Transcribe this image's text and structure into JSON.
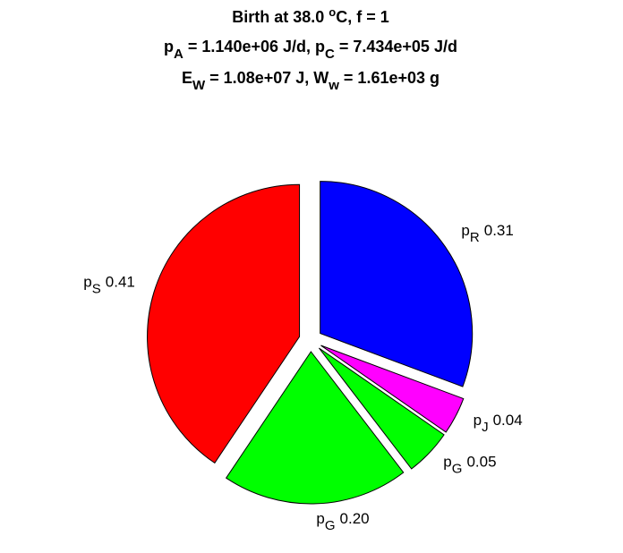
{
  "chart_data": {
    "type": "pie",
    "title": [
      [
        {
          "text": "Birth at 38.0 "
        },
        {
          "sup": "o"
        },
        {
          "text": "C, f = 1"
        }
      ],
      [
        {
          "text": "p"
        },
        {
          "sub": "A"
        },
        {
          "text": " = 1.140e+06 J/d, p"
        },
        {
          "sub": "C"
        },
        {
          "text": " = 7.434e+05 J/d"
        }
      ],
      [
        {
          "text": "E"
        },
        {
          "sub": "W"
        },
        {
          "text": " = 1.08e+07 J, W"
        },
        {
          "sub": "w"
        },
        {
          "text": " = 1.61e+03 g"
        }
      ]
    ],
    "categories": [
      {
        "text": "p",
        "sub": "R"
      },
      {
        "text": "p",
        "sub": "J"
      },
      {
        "text": "p",
        "sub": "G"
      },
      {
        "text": "p",
        "sub": "G"
      },
      {
        "text": "p",
        "sub": "S"
      }
    ],
    "values": [
      0.31,
      0.04,
      0.05,
      0.2,
      0.41
    ],
    "value_labels": [
      "0.31",
      "0.04",
      "0.05",
      "0.20",
      "0.41"
    ],
    "colors": [
      "#0000ff",
      "#ff00ff",
      "#00ff00",
      "#00ff00",
      "#ff0000"
    ]
  }
}
